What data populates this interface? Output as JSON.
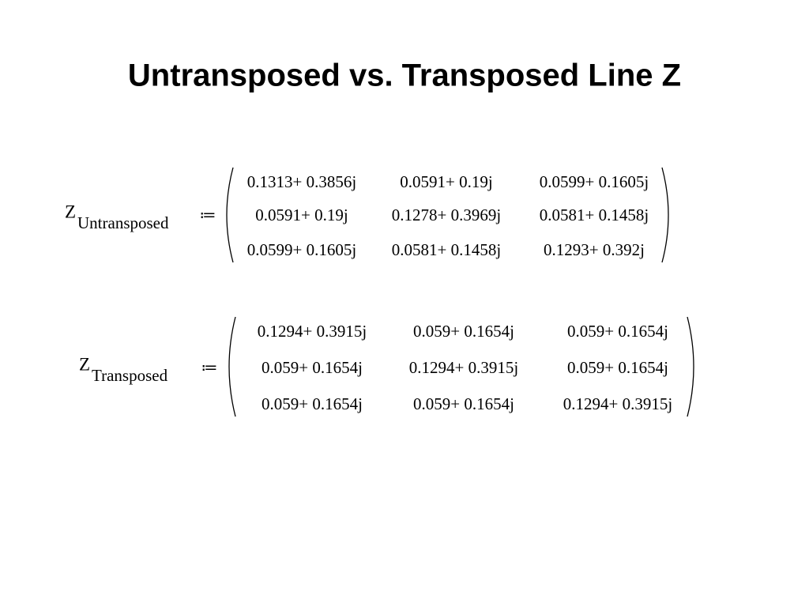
{
  "title": "Untransposed vs. Transposed Line Z",
  "matrices": [
    {
      "symbol": "Z",
      "subscript": "Untransposed",
      "operator": "≔",
      "rows": [
        [
          "0.1313+ 0.3856j",
          "0.0591+ 0.19j",
          "0.0599+ 0.1605j"
        ],
        [
          "0.0591+ 0.19j",
          "0.1278+ 0.3969j",
          "0.0581+ 0.1458j"
        ],
        [
          "0.0599+ 0.1605j",
          "0.0581+ 0.1458j",
          "0.1293+ 0.392j"
        ]
      ]
    },
    {
      "symbol": "Z",
      "subscript": "Transposed",
      "operator": "≔",
      "rows": [
        [
          "0.1294+ 0.3915j",
          "0.059+ 0.1654j",
          "0.059+ 0.1654j"
        ],
        [
          "0.059+ 0.1654j",
          "0.1294+ 0.3915j",
          "0.059+ 0.1654j"
        ],
        [
          "0.059+ 0.1654j",
          "0.059+ 0.1654j",
          "0.1294+ 0.3915j"
        ]
      ]
    }
  ]
}
